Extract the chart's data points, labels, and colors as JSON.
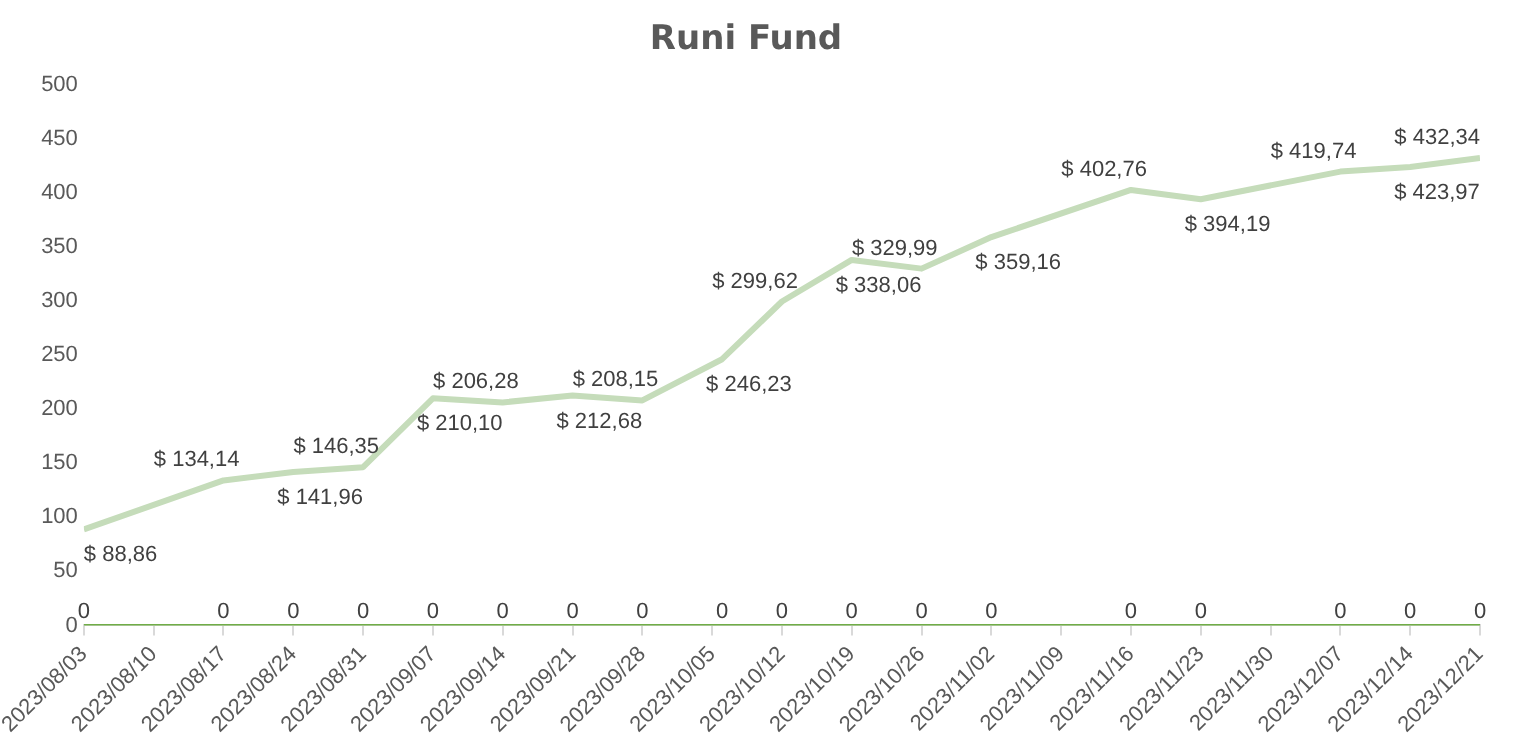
{
  "chart_data": {
    "type": "line",
    "title": "Runi Fund",
    "x": [
      "2023-08-03",
      "2023-08-17",
      "2023-08-24",
      "2023-08-31",
      "2023-09-07",
      "2023-09-14",
      "2023-09-21",
      "2023-09-28",
      "2023-10-06",
      "2023-10-12",
      "2023-10-19",
      "2023-10-26",
      "2023-11-02",
      "2023-11-16",
      "2023-11-23",
      "2023-12-07",
      "2023-12-14",
      "2023-12-21"
    ],
    "series": [
      {
        "color": "#c5dcba",
        "values": [
          88.86,
          134.14,
          141.96,
          146.35,
          210.1,
          206.28,
          212.68,
          208.15,
          246.23,
          299.62,
          338.06,
          329.99,
          359.16,
          402.76,
          394.19,
          419.74,
          423.97,
          432.34
        ],
        "value_labels": [
          "$ 88,86",
          "$ 134,14",
          "$ 141,96",
          "$ 146,35",
          "$ 210,10",
          "$ 206,28",
          "$ 212,68",
          "$ 208,15",
          "$ 246,23",
          "$ 299,62",
          "$ 338,06",
          "$ 329,99",
          "$ 359,16",
          "$ 402,76",
          "$ 394,19",
          "$ 419,74",
          "$ 423,97",
          "$ 432,34"
        ]
      },
      {
        "color": "#70ad47",
        "values": [
          0,
          0,
          0,
          0,
          0,
          0,
          0,
          0,
          0,
          0,
          0,
          0,
          0,
          0,
          0,
          0,
          0,
          0
        ],
        "value_labels": [
          "0",
          "0",
          "0",
          "0",
          "0",
          "0",
          "0",
          "0",
          "0",
          "0",
          "0",
          "0",
          "0",
          "0",
          "0",
          "0",
          "0",
          "0"
        ]
      }
    ],
    "xlim": [
      "2023-08-03",
      "2023-12-21"
    ],
    "xticks": [
      {
        "value": "2023-08-03",
        "label": "2023/08/03"
      },
      {
        "value": "2023-08-10",
        "label": "2023/08/10"
      },
      {
        "value": "2023-08-17",
        "label": "2023/08/17"
      },
      {
        "value": "2023-08-24",
        "label": "2023/08/24"
      },
      {
        "value": "2023-08-31",
        "label": "2023/08/31"
      },
      {
        "value": "2023-09-07",
        "label": "2023/09/07"
      },
      {
        "value": "2023-09-14",
        "label": "2023/09/14"
      },
      {
        "value": "2023-09-21",
        "label": "2023/09/21"
      },
      {
        "value": "2023-09-28",
        "label": "2023/09/28"
      },
      {
        "value": "2023-10-05",
        "label": "2023/10/05"
      },
      {
        "value": "2023-10-12",
        "label": "2023/10/12"
      },
      {
        "value": "2023-10-19",
        "label": "2023/10/19"
      },
      {
        "value": "2023-10-26",
        "label": "2023/10/26"
      },
      {
        "value": "2023-11-02",
        "label": "2023/11/02"
      },
      {
        "value": "2023-11-09",
        "label": "2023/11/09"
      },
      {
        "value": "2023-11-16",
        "label": "2023/11/16"
      },
      {
        "value": "2023-11-23",
        "label": "2023/11/23"
      },
      {
        "value": "2023-11-30",
        "label": "2023/11/30"
      },
      {
        "value": "2023-12-07",
        "label": "2023/12/07"
      },
      {
        "value": "2023-12-14",
        "label": "2023/12/14"
      },
      {
        "value": "2023-12-21",
        "label": "2023/12/21"
      }
    ],
    "ylim": [
      0,
      500
    ],
    "yticks": [
      0,
      50,
      100,
      150,
      200,
      250,
      300,
      350,
      400,
      450,
      500
    ],
    "grid": false,
    "legend": false,
    "marker": "none",
    "line_style": "solid"
  }
}
